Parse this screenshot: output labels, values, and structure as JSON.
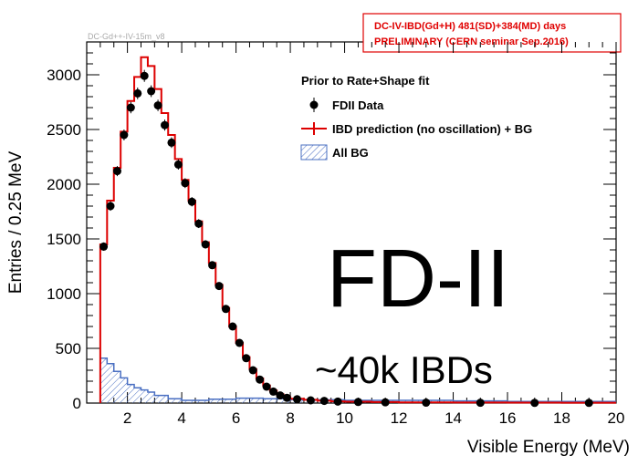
{
  "chart_data": {
    "type": "histogram",
    "id_label": "DC-Gd++-IV-15m_v8",
    "tag_lines": [
      "DC-IV-IBD(Gd+H)  481(SD)+384(MD) days",
      "PRELIMINARY (CERN seminar Sep.2016)"
    ],
    "xlabel": "Visible Energy (MeV)",
    "ylabel": "Entries / 0.25 MeV",
    "xlim": [
      0.5,
      20
    ],
    "ylim": [
      0,
      3300
    ],
    "xticks": [
      2,
      4,
      6,
      8,
      10,
      12,
      14,
      16,
      18,
      20
    ],
    "yticks": [
      0,
      500,
      1000,
      1500,
      2000,
      2500,
      3000
    ],
    "legend": {
      "header": "Prior to Rate+Shape fit",
      "entries": [
        "FDII Data",
        "IBD prediction (no oscillation) + BG",
        "All BG"
      ]
    },
    "overlay_title": "FD-II",
    "overlay_subtitle": "~40k IBDs",
    "colors": {
      "prediction": "#dd0000",
      "background": "#4a6fc2",
      "data": "#000000"
    },
    "data_points": {
      "x": [
        1.125,
        1.375,
        1.625,
        1.875,
        2.125,
        2.375,
        2.625,
        2.875,
        3.125,
        3.375,
        3.625,
        3.875,
        4.125,
        4.375,
        4.625,
        4.875,
        5.125,
        5.375,
        5.625,
        5.875,
        6.125,
        6.375,
        6.625,
        6.875,
        7.125,
        7.375,
        7.625,
        7.875,
        8.25,
        8.75,
        9.25,
        9.75,
        10.5,
        11.5,
        13,
        15,
        17,
        19
      ],
      "y": [
        1430,
        1800,
        2120,
        2450,
        2700,
        2830,
        2990,
        2850,
        2720,
        2540,
        2380,
        2180,
        2010,
        1840,
        1640,
        1450,
        1260,
        1070,
        860,
        700,
        550,
        410,
        300,
        215,
        150,
        105,
        70,
        48,
        35,
        25,
        20,
        14,
        10,
        7,
        4,
        3,
        2,
        2
      ]
    },
    "prediction_hist": {
      "edges": [
        1.0,
        1.25,
        1.5,
        1.75,
        2.0,
        2.25,
        2.5,
        2.75,
        3.0,
        3.25,
        3.5,
        3.75,
        4.0,
        4.25,
        4.5,
        4.75,
        5.0,
        5.25,
        5.5,
        5.75,
        6.0,
        6.25,
        6.5,
        6.75,
        7.0,
        7.25,
        7.5,
        7.75,
        8.0,
        8.5,
        9.0,
        9.5,
        10.0,
        11.0,
        12.0,
        14.0,
        16.0,
        18.0,
        20.0
      ],
      "values": [
        1450,
        1850,
        2150,
        2480,
        2760,
        2980,
        3160,
        3080,
        2870,
        2650,
        2450,
        2230,
        2040,
        1850,
        1660,
        1470,
        1280,
        1080,
        870,
        700,
        550,
        420,
        310,
        225,
        160,
        115,
        80,
        55,
        40,
        30,
        22,
        16,
        12,
        9,
        6,
        5,
        4,
        3
      ]
    },
    "background_hist": {
      "edges": [
        1.0,
        1.25,
        1.5,
        1.75,
        2.0,
        2.25,
        2.5,
        2.75,
        3.0,
        3.5,
        4.0,
        5.0,
        6.0,
        7.0,
        8.0,
        10.0,
        12.0,
        14.0,
        16.0,
        18.0,
        20.0
      ],
      "values": [
        410,
        360,
        290,
        230,
        170,
        140,
        120,
        100,
        70,
        40,
        25,
        35,
        45,
        40,
        30,
        25,
        25,
        20,
        15,
        15
      ]
    }
  }
}
